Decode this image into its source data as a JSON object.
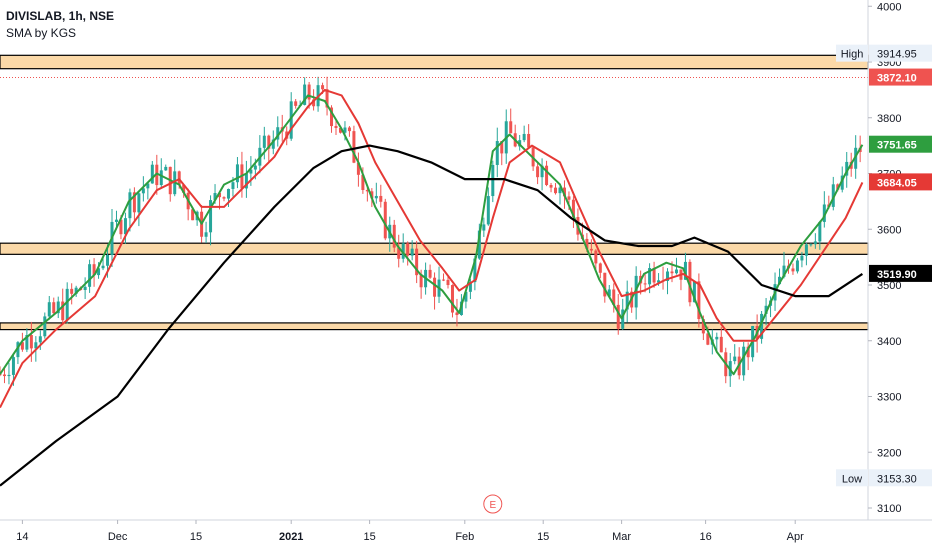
{
  "legend": {
    "symbol_line": "DIVISLAB, 1h, NSE",
    "indicator": "SMA by KGS"
  },
  "colors": {
    "up_candle": "#26a69a",
    "down_candle": "#ef5350",
    "sma_fast": "#2e9e3f",
    "sma_mid": "#e53935",
    "sma_slow": "#000000",
    "zone_fill": "#fbd9a8",
    "zone_border": "#000000"
  },
  "price_badges": {
    "high_label": "High",
    "high_value": "3914.95",
    "last_price": "3872.10",
    "sma_fast_value": "3751.65",
    "sma_mid_value": "3684.05",
    "sma_slow_value": "3519.90",
    "low_label": "Low",
    "low_value": "3153.30"
  },
  "earnings_marker": "E",
  "chart_data": {
    "type": "line",
    "title": "DIVISLAB, 1h, NSE",
    "y_axis": {
      "ticks": [
        3100,
        3200,
        3300,
        3400,
        3500,
        3600,
        3700,
        3800,
        3900,
        4000
      ],
      "range": [
        3080,
        4010
      ]
    },
    "x_axis": {
      "ticks": [
        "14",
        "Dec",
        "15",
        "2021",
        "15",
        "Feb",
        "15",
        "Mar",
        "16",
        "Apr"
      ],
      "range": [
        "Nov 10",
        "Apr 14"
      ]
    },
    "support_resistance_zones": [
      {
        "from": 3888,
        "to": 3912
      },
      {
        "from": 3555,
        "to": 3575
      },
      {
        "from": 3420,
        "to": 3432
      }
    ],
    "last_price_line": 3872.1,
    "series": [
      {
        "name": "SMA fast",
        "x": [
          "Nov 10",
          "Nov 14",
          "Nov 20",
          "Nov 27",
          "Dec 3",
          "Dec 8",
          "Dec 12",
          "Dec 16",
          "Dec 20",
          "Dec 24",
          "Dec 29",
          "Jan 1",
          "Jan 4",
          "Jan 7",
          "Jan 10",
          "Jan 13",
          "Jan 16",
          "Jan 20",
          "Jan 24",
          "Jan 28",
          "Jan 31",
          "Feb 3",
          "Feb 6",
          "Feb 9",
          "Feb 13",
          "Feb 18",
          "Feb 21",
          "Feb 25",
          "Mar 1",
          "Mar 5",
          "Mar 9",
          "Mar 12",
          "Mar 15",
          "Mar 18",
          "Mar 21",
          "Mar 25",
          "Mar 29",
          "Apr 2",
          "Apr 6",
          "Apr 10",
          "Apr 13"
        ],
        "values": [
          3340,
          3400,
          3450,
          3520,
          3650,
          3700,
          3680,
          3610,
          3680,
          3700,
          3760,
          3800,
          3840,
          3830,
          3780,
          3720,
          3640,
          3570,
          3520,
          3490,
          3450,
          3550,
          3740,
          3770,
          3730,
          3680,
          3610,
          3510,
          3440,
          3520,
          3540,
          3530,
          3450,
          3380,
          3340,
          3410,
          3500,
          3570,
          3620,
          3700,
          3751.65
        ]
      },
      {
        "name": "SMA mid",
        "x": [
          "Nov 10",
          "Nov 14",
          "Nov 20",
          "Nov 27",
          "Dec 3",
          "Dec 8",
          "Dec 12",
          "Dec 16",
          "Dec 20",
          "Dec 24",
          "Dec 29",
          "Jan 1",
          "Jan 4",
          "Jan 7",
          "Jan 10",
          "Jan 13",
          "Jan 16",
          "Jan 20",
          "Jan 24",
          "Jan 28",
          "Jan 31",
          "Feb 3",
          "Feb 6",
          "Feb 9",
          "Feb 13",
          "Feb 18",
          "Feb 21",
          "Feb 25",
          "Mar 1",
          "Mar 5",
          "Mar 9",
          "Mar 12",
          "Mar 15",
          "Mar 18",
          "Mar 21",
          "Mar 25",
          "Mar 29",
          "Apr 2",
          "Apr 6",
          "Apr 10",
          "Apr 13"
        ],
        "values": [
          3280,
          3360,
          3420,
          3480,
          3600,
          3670,
          3690,
          3640,
          3640,
          3680,
          3730,
          3780,
          3820,
          3850,
          3840,
          3790,
          3720,
          3650,
          3580,
          3530,
          3490,
          3510,
          3620,
          3720,
          3750,
          3720,
          3650,
          3560,
          3480,
          3490,
          3510,
          3520,
          3500,
          3440,
          3400,
          3400,
          3450,
          3500,
          3560,
          3620,
          3684.05
        ]
      },
      {
        "name": "SMA slow",
        "x": [
          "Nov 10",
          "Nov 20",
          "Dec 1",
          "Dec 10",
          "Dec 20",
          "Dec 29",
          "Jan 5",
          "Jan 10",
          "Jan 15",
          "Jan 20",
          "Jan 26",
          "Feb 1",
          "Feb 8",
          "Feb 14",
          "Feb 20",
          "Feb 26",
          "Mar 4",
          "Mar 10",
          "Mar 14",
          "Mar 20",
          "Mar 26",
          "Apr 1",
          "Apr 7",
          "Apr 13"
        ],
        "values": [
          3140,
          3220,
          3300,
          3420,
          3540,
          3640,
          3710,
          3740,
          3750,
          3740,
          3720,
          3690,
          3690,
          3670,
          3620,
          3580,
          3570,
          3570,
          3585,
          3560,
          3500,
          3480,
          3480,
          3519.9
        ]
      }
    ]
  }
}
